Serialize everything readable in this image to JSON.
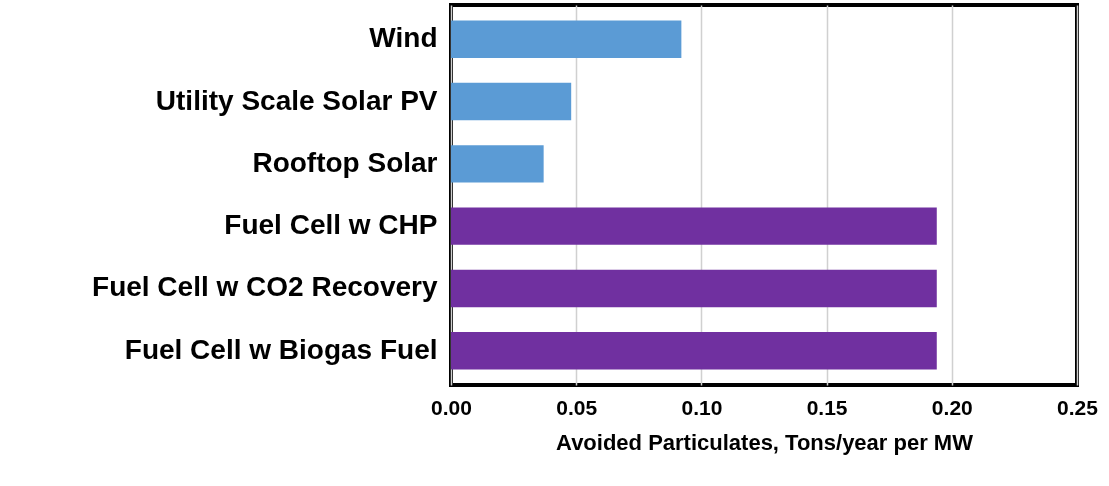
{
  "chart_data": {
    "type": "bar",
    "orientation": "horizontal",
    "xlabel": "Avoided Particulates, Tons/year per MW",
    "categories": [
      "Wind",
      "Utility Scale Solar PV",
      "Rooftop Solar",
      "Fuel Cell w CHP",
      "Fuel Cell w CO2 Recovery",
      "Fuel Cell w Biogas Fuel"
    ],
    "values": [
      0.092,
      0.048,
      0.037,
      0.194,
      0.194,
      0.194
    ],
    "colors": [
      "#5b9bd5",
      "#5b9bd5",
      "#5b9bd5",
      "#7030a0",
      "#7030a0",
      "#7030a0"
    ],
    "xlim": [
      0,
      0.25
    ],
    "xticks": [
      {
        "value": 0,
        "label": "0.00"
      },
      {
        "value": 0.05,
        "label": "0.05"
      },
      {
        "value": 0.1,
        "label": "0.10"
      },
      {
        "value": 0.15,
        "label": "0.15"
      },
      {
        "value": 0.2,
        "label": "0.20"
      },
      {
        "value": 0.25,
        "label": "0.25"
      }
    ],
    "grid": "x"
  }
}
